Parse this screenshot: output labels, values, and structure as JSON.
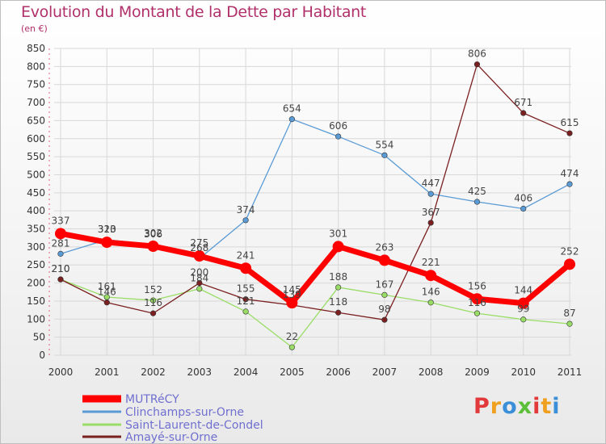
{
  "header": {
    "title": "Evolution du Montant de la Dette par Habitant",
    "subtitle": "(en €)"
  },
  "logo": {
    "text": "Proxiti",
    "colors": [
      "#e23a3a",
      "#f0a020",
      "#3a8fd8",
      "#5cbf3a"
    ]
  },
  "colors": {
    "title": "#b0306a",
    "grid": "#d8d8d8",
    "axis_dash": "#e06080"
  },
  "chart_data": {
    "type": "line",
    "x": [
      "2000",
      "2001",
      "2002",
      "2003",
      "2004",
      "2005",
      "2006",
      "2007",
      "2008",
      "2009",
      "2010",
      "2011"
    ],
    "ylim": [
      0,
      850
    ],
    "yticks": [
      0,
      50,
      100,
      150,
      200,
      250,
      300,
      350,
      400,
      450,
      500,
      550,
      600,
      650,
      700,
      750,
      800,
      850
    ],
    "grid": true,
    "legend_position": "bottom-left",
    "series": [
      {
        "name": "MUTRéCY",
        "color": "#ff0000",
        "values": [
          337,
          313,
          302,
          275,
          241,
          145,
          301,
          263,
          221,
          156,
          144,
          252
        ]
      },
      {
        "name": "Clinchamps-sur-Orne",
        "color": "#5b9bd5",
        "values": [
          281,
          320,
          306,
          268,
          374,
          654,
          606,
          554,
          447,
          425,
          406,
          474
        ]
      },
      {
        "name": "Saint-Laurent-de-Condel",
        "color": "#99dd66",
        "values": [
          210,
          161,
          152,
          184,
          121,
          22,
          188,
          167,
          146,
          116,
          99,
          87
        ]
      },
      {
        "name": "Amayé-sur-Orne",
        "color": "#7b2020",
        "values": [
          210,
          146,
          116,
          200,
          155,
          139,
          118,
          98,
          367,
          806,
          671,
          615
        ]
      }
    ]
  }
}
